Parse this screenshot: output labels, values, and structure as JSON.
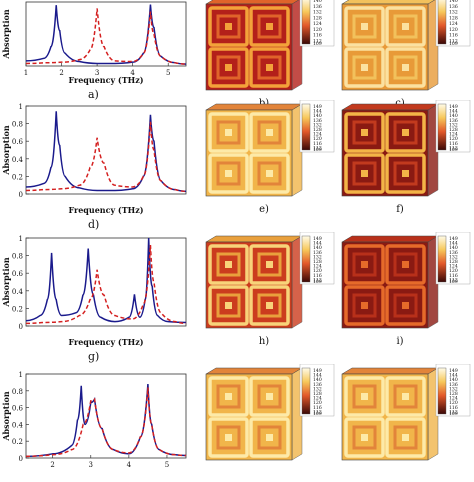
{
  "figure": {
    "plots": [
      {
        "label": "a)",
        "xlabel": "Frequency (THz)",
        "ylabel": "Absorption",
        "xticks": [
          "1",
          "2",
          "3",
          "4",
          "5"
        ],
        "yticks": []
      },
      {
        "label": "d)",
        "xlabel": "Frequency (THz)",
        "ylabel": "Absorption",
        "xticks": [],
        "yticks": [
          "0",
          "0.2",
          "0.4",
          "0.6",
          "0.8",
          "1"
        ]
      },
      {
        "label": "g)",
        "xlabel": "Frequency (THz)",
        "ylabel": "Absorption",
        "xticks": [],
        "yticks": [
          "0",
          "0.2",
          "0.4",
          "0.6",
          "0.8",
          "1"
        ]
      },
      {
        "label": "",
        "xlabel": "",
        "ylabel": "Absorption",
        "xticks": [
          "2",
          "3",
          "4",
          "5"
        ],
        "yticks": [
          "0",
          "0.2",
          "0.4",
          "0.6",
          "0.8",
          "1"
        ]
      }
    ],
    "maps": [
      {
        "label": "b)",
        "scale": [
          "140",
          "136",
          "132",
          "128",
          "124",
          "120",
          "116",
          "112",
          "109"
        ]
      },
      {
        "label": "c)",
        "scale": [
          "140",
          "136",
          "132",
          "128",
          "124",
          "120",
          "116",
          "112",
          "109"
        ]
      },
      {
        "label": "e)",
        "scale": [
          "149",
          "144",
          "140",
          "136",
          "132",
          "128",
          "124",
          "120",
          "116",
          "112",
          "109"
        ]
      },
      {
        "label": "f)",
        "scale": [
          "149",
          "144",
          "140",
          "136",
          "132",
          "128",
          "124",
          "120",
          "116",
          "112",
          "109"
        ]
      },
      {
        "label": "h)",
        "scale": [
          "149",
          "144",
          "140",
          "136",
          "132",
          "128",
          "124",
          "120",
          "116",
          "112",
          "109"
        ]
      },
      {
        "label": "i)",
        "scale": [
          "149",
          "144",
          "140",
          "136",
          "132",
          "128",
          "124",
          "120",
          "116",
          "112",
          "109"
        ]
      },
      {
        "label": "",
        "scale": [
          "149",
          "144",
          "140",
          "136",
          "132",
          "128",
          "124",
          "120",
          "116",
          "112",
          "109"
        ]
      },
      {
        "label": "",
        "scale": [
          "149",
          "144",
          "140",
          "136",
          "132",
          "128",
          "124",
          "120",
          "116",
          "112",
          "109"
        ]
      }
    ]
  },
  "chart_data": [
    {
      "type": "line",
      "xlim": [
        1,
        5.5
      ],
      "ylim": [
        0,
        1
      ],
      "series": [
        {
          "style": "solid",
          "color": "#1a1a8c",
          "x": [
            1,
            1.5,
            1.7,
            1.85,
            1.95,
            2.1,
            2.5,
            3,
            3.5,
            4,
            4.3,
            4.5,
            4.6,
            4.8,
            5.2,
            5.5
          ],
          "y": [
            0.08,
            0.12,
            0.3,
            0.95,
            0.55,
            0.2,
            0.07,
            0.04,
            0.04,
            0.06,
            0.2,
            0.96,
            0.6,
            0.15,
            0.05,
            0.03
          ]
        },
        {
          "style": "dashed",
          "color": "#d42020",
          "x": [
            1,
            1.5,
            2,
            2.5,
            2.8,
            3,
            3.2,
            3.5,
            4,
            4.3,
            4.5,
            4.6,
            4.8,
            5.2,
            5.5
          ],
          "y": [
            0.04,
            0.05,
            0.06,
            0.1,
            0.25,
            0.9,
            0.3,
            0.08,
            0.07,
            0.2,
            0.85,
            0.5,
            0.15,
            0.05,
            0.03
          ]
        }
      ]
    },
    {
      "type": "line",
      "xlim": [
        1,
        5.5
      ],
      "ylim": [
        0,
        1
      ],
      "series": [
        {
          "style": "solid",
          "color": "#1a1a8c",
          "x": [
            1,
            1.5,
            1.7,
            1.85,
            1.95,
            2.1,
            2.5,
            3,
            3.5,
            4,
            4.3,
            4.5,
            4.6,
            4.8,
            5.2,
            5.5
          ],
          "y": [
            0.08,
            0.12,
            0.3,
            0.94,
            0.55,
            0.2,
            0.07,
            0.04,
            0.04,
            0.06,
            0.2,
            0.9,
            0.6,
            0.15,
            0.05,
            0.03
          ]
        },
        {
          "style": "dashed",
          "color": "#d42020",
          "x": [
            1,
            1.5,
            2,
            2.5,
            2.8,
            3,
            3.2,
            3.5,
            4,
            4.3,
            4.5,
            4.6,
            4.8,
            5.2,
            5.5
          ],
          "y": [
            0.04,
            0.05,
            0.06,
            0.1,
            0.3,
            0.64,
            0.35,
            0.1,
            0.08,
            0.2,
            0.82,
            0.5,
            0.15,
            0.05,
            0.03
          ]
        }
      ]
    },
    {
      "type": "line",
      "xlim": [
        1,
        5.5
      ],
      "ylim": [
        0,
        1
      ],
      "series": [
        {
          "style": "solid",
          "color": "#1a1a8c",
          "x": [
            1,
            1.4,
            1.6,
            1.72,
            1.85,
            2,
            2.4,
            2.6,
            2.75,
            2.9,
            3.1,
            3.5,
            3.9,
            4.05,
            4.2,
            4.35,
            4.45,
            4.55,
            4.7,
            5,
            5.5
          ],
          "y": [
            0.06,
            0.12,
            0.3,
            0.83,
            0.3,
            0.12,
            0.15,
            0.35,
            0.88,
            0.35,
            0.1,
            0.05,
            0.1,
            0.36,
            0.1,
            0.3,
            1.0,
            0.45,
            0.12,
            0.05,
            0.04
          ]
        },
        {
          "style": "dashed",
          "color": "#d42020",
          "x": [
            1,
            1.5,
            2,
            2.5,
            2.8,
            3,
            3.2,
            3.5,
            4,
            4.3,
            4.5,
            4.6,
            4.8,
            5.2,
            5.5
          ],
          "y": [
            0.03,
            0.04,
            0.05,
            0.12,
            0.3,
            0.64,
            0.35,
            0.12,
            0.08,
            0.25,
            0.92,
            0.5,
            0.15,
            0.05,
            0.03
          ]
        }
      ]
    },
    {
      "type": "line",
      "xlim": [
        1.3,
        5.5
      ],
      "ylim": [
        0,
        1
      ],
      "series": [
        {
          "style": "solid",
          "color": "#1a1a8c",
          "x": [
            1.3,
            2,
            2.5,
            2.65,
            2.75,
            2.85,
            3,
            3.1,
            3.3,
            3.6,
            4,
            4.3,
            4.5,
            4.6,
            4.8,
            5.2,
            5.5
          ],
          "y": [
            0.02,
            0.05,
            0.15,
            0.45,
            0.86,
            0.4,
            0.66,
            0.7,
            0.35,
            0.1,
            0.05,
            0.25,
            0.88,
            0.4,
            0.1,
            0.04,
            0.03
          ]
        },
        {
          "style": "dashed",
          "color": "#d42020",
          "x": [
            1.3,
            2,
            2.5,
            2.8,
            3,
            3.1,
            3.3,
            3.6,
            4,
            4.3,
            4.5,
            4.6,
            4.8,
            5.2,
            5.5
          ],
          "y": [
            0.02,
            0.04,
            0.1,
            0.4,
            0.68,
            0.7,
            0.35,
            0.1,
            0.06,
            0.25,
            0.84,
            0.4,
            0.1,
            0.04,
            0.03
          ]
        }
      ]
    }
  ]
}
